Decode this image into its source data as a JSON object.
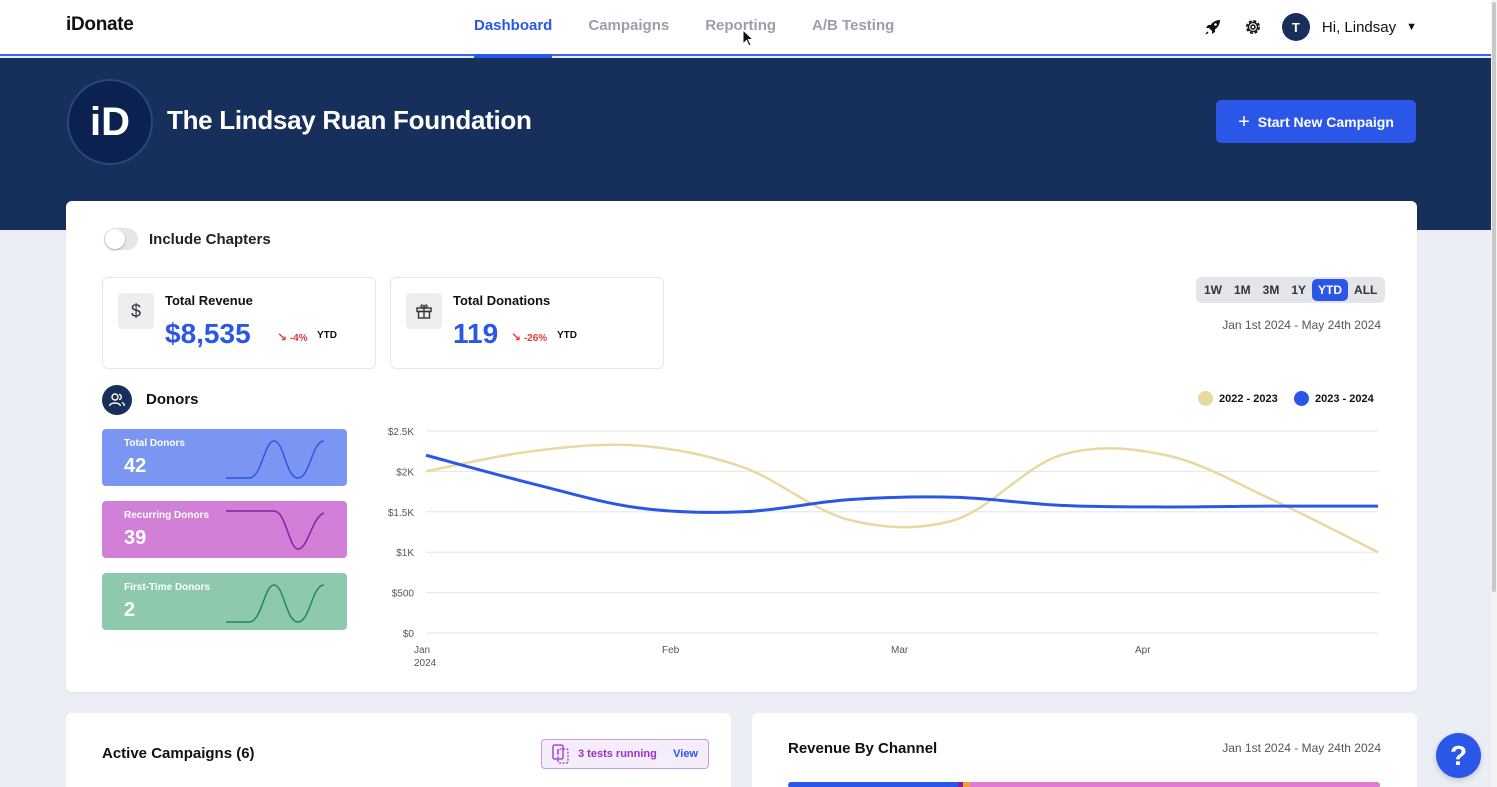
{
  "app": {
    "logo": "iDonate"
  },
  "nav": {
    "tabs": [
      {
        "label": "Dashboard",
        "active": true
      },
      {
        "label": "Campaigns",
        "active": false
      },
      {
        "label": "Reporting",
        "active": false
      },
      {
        "label": "A/B Testing",
        "active": false
      }
    ],
    "user": {
      "initial": "T",
      "greeting": "Hi, Lindsay"
    },
    "icons": [
      "rocket-icon",
      "gear-icon"
    ]
  },
  "banner": {
    "org_name": "The Lindsay Ruan Foundation",
    "org_logo_text": "iD",
    "start_button": "Start New Campaign"
  },
  "filters": {
    "include_chapters_label": "Include Chapters",
    "include_chapters_on": false,
    "ranges": [
      "1W",
      "1M",
      "3M",
      "1Y",
      "YTD",
      "ALL"
    ],
    "active_range": "YTD",
    "date_range": "Jan 1st 2024 - May 24th 2024"
  },
  "stats": {
    "revenue": {
      "title": "Total Revenue",
      "value": "$8,535",
      "delta": "-4%",
      "period": "YTD"
    },
    "donations": {
      "title": "Total Donations",
      "value": "119",
      "delta": "-26%",
      "period": "YTD"
    }
  },
  "donors": {
    "title": "Donors",
    "tiles": [
      {
        "label": "Total Donors",
        "value": "42",
        "color": "#7b96f2",
        "line": "#2b57e8"
      },
      {
        "label": "Recurring Donors",
        "value": "39",
        "color": "#d27fd8",
        "line": "#8a1fa3"
      },
      {
        "label": "First-Time Donors",
        "value": "2",
        "color": "#8ec9ae",
        "line": "#1f8a55"
      }
    ]
  },
  "chart_data": {
    "type": "line",
    "x": [
      "Jan 1 2024",
      "Jan 20",
      "Feb 1",
      "Feb 20",
      "Mar 1",
      "Mar 20",
      "Apr 1",
      "Apr 20",
      "May 1",
      "May 24"
    ],
    "xtick_labels": [
      {
        "label": "Jan",
        "sub": "2024"
      },
      {
        "label": "Feb",
        "sub": ""
      },
      {
        "label": "Mar",
        "sub": ""
      },
      {
        "label": "Apr",
        "sub": ""
      }
    ],
    "yticks": [
      "$0",
      "$500",
      "$1K",
      "$1.5K",
      "$2K",
      "$2.5K"
    ],
    "ylim": [
      0,
      2500
    ],
    "grid": true,
    "legend_position": "top-right",
    "series": [
      {
        "name": "2022 - 2023",
        "color": "#e8d9a0",
        "values": [
          2000,
          2250,
          2320,
          2050,
          1400,
          1400,
          2200,
          2200,
          1650,
          1000
        ]
      },
      {
        "name": "2023 - 2024",
        "color": "#2b57e8",
        "values": [
          2200,
          1850,
          1550,
          1500,
          1650,
          1680,
          1580,
          1560,
          1570,
          1570
        ]
      }
    ]
  },
  "bottom": {
    "campaigns": {
      "title": "Active Campaigns (6)",
      "tests": "3 tests running",
      "view": "View"
    },
    "revenue_channel": {
      "title": "Revenue By Channel",
      "date": "Jan 1st 2024 - May 24th 2024"
    }
  },
  "help": {
    "label": "?"
  }
}
